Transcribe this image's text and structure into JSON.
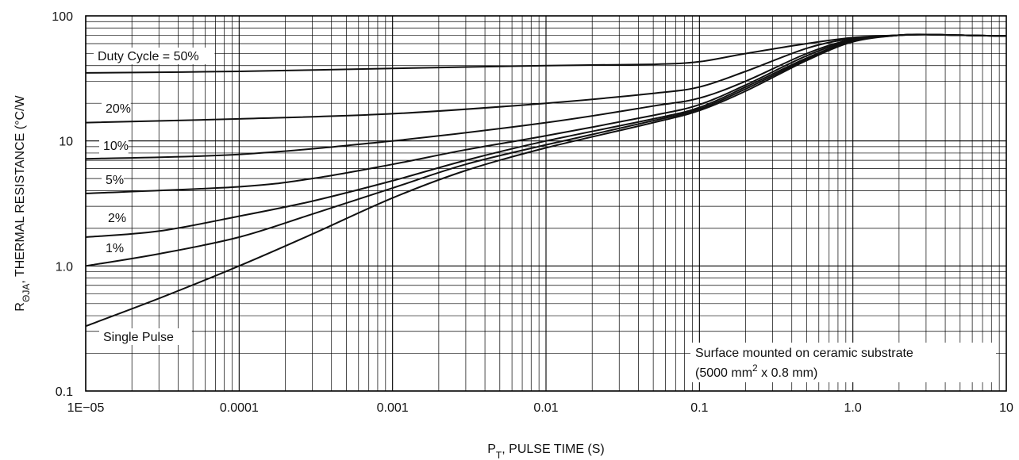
{
  "chart_data": {
    "type": "line",
    "title": "",
    "xlabel": {
      "main": "P",
      "sub": "T",
      "rest": ", PULSE TIME (S)"
    },
    "ylabel": {
      "main": "R",
      "sub": "ΘJA",
      "rest": ", THERMAL RESISTANCE (°C/W"
    },
    "x_scale": "log",
    "y_scale": "log",
    "xlim": [
      1e-05,
      10
    ],
    "ylim": [
      0.1,
      100
    ],
    "grid": true,
    "x_ticks": [
      {
        "value": 1e-05,
        "label": "1E−05"
      },
      {
        "value": 0.0001,
        "label": "0.0001"
      },
      {
        "value": 0.001,
        "label": "0.001"
      },
      {
        "value": 0.01,
        "label": "0.01"
      },
      {
        "value": 0.1,
        "label": "0.1"
      },
      {
        "value": 1,
        "label": "1.0"
      },
      {
        "value": 10,
        "label": "10"
      }
    ],
    "y_ticks": [
      {
        "value": 0.1,
        "label": "0.1"
      },
      {
        "value": 1,
        "label": "1.0"
      },
      {
        "value": 10,
        "label": "10"
      },
      {
        "value": 100,
        "label": "100"
      }
    ],
    "series": [
      {
        "name": "Duty Cycle = 50%",
        "x": [
          1e-05,
          0.0001,
          0.001,
          0.01,
          0.05,
          0.1,
          0.2,
          0.5,
          1,
          2,
          3,
          5,
          10
        ],
        "y": [
          35,
          36,
          38,
          40,
          41,
          43,
          50,
          60,
          67,
          70,
          71,
          70,
          69
        ]
      },
      {
        "name": "20%",
        "x": [
          1e-05,
          0.0001,
          0.001,
          0.01,
          0.05,
          0.1,
          0.2,
          0.5,
          1,
          2,
          3,
          5,
          10
        ],
        "y": [
          14,
          15,
          16.5,
          20,
          24,
          27,
          36,
          55,
          66,
          70,
          71,
          70,
          69
        ]
      },
      {
        "name": "10%",
        "x": [
          1e-05,
          0.0001,
          0.001,
          0.01,
          0.05,
          0.1,
          0.2,
          0.5,
          1,
          2,
          3,
          5,
          10
        ],
        "y": [
          7.2,
          7.8,
          10,
          14,
          19,
          22,
          30,
          50,
          65,
          70,
          71,
          70,
          69
        ]
      },
      {
        "name": "5%",
        "x": [
          1e-05,
          0.0001,
          0.0003,
          0.001,
          0.003,
          0.01,
          0.05,
          0.1,
          0.2,
          0.5,
          1,
          2,
          3,
          5,
          10
        ],
        "y": [
          3.8,
          4.3,
          5,
          6.5,
          8.5,
          11,
          16,
          19.5,
          28,
          48,
          64,
          70,
          71,
          70,
          69
        ]
      },
      {
        "name": "2%",
        "x": [
          1e-05,
          3e-05,
          0.0001,
          0.0003,
          0.001,
          0.003,
          0.01,
          0.05,
          0.1,
          0.2,
          0.5,
          1,
          2,
          3,
          5,
          10
        ],
        "y": [
          1.7,
          1.9,
          2.5,
          3.3,
          4.8,
          7,
          10,
          15,
          18.5,
          27,
          46,
          63,
          70,
          71,
          70,
          69
        ]
      },
      {
        "name": "1%",
        "x": [
          1e-05,
          3e-05,
          0.0001,
          0.0003,
          0.001,
          0.003,
          0.01,
          0.05,
          0.1,
          0.2,
          0.5,
          1,
          2,
          3,
          5,
          10
        ],
        "y": [
          1.0,
          1.25,
          1.7,
          2.6,
          4.2,
          6.5,
          9.3,
          14.5,
          18,
          26,
          45,
          63,
          70,
          71,
          70,
          69
        ]
      },
      {
        "name": "Single Pulse",
        "x": [
          1e-05,
          3e-05,
          0.0001,
          0.0003,
          0.001,
          0.003,
          0.01,
          0.05,
          0.1,
          0.2,
          0.5,
          1,
          2,
          3,
          5,
          10
        ],
        "y": [
          0.33,
          0.55,
          1.0,
          1.8,
          3.5,
          5.8,
          8.8,
          14,
          17.5,
          25,
          44,
          62,
          70,
          71,
          70,
          69
        ]
      }
    ],
    "series_labels": [
      {
        "text": "Duty Cycle = 50%"
      },
      {
        "text": "20%"
      },
      {
        "text": "10%"
      },
      {
        "text": "5%"
      },
      {
        "text": "2%"
      },
      {
        "text": "1%"
      },
      {
        "text": "Single Pulse"
      }
    ],
    "annotation": {
      "line1": "Surface mounted on ceramic substrate",
      "line2_pre": "(5000 mm",
      "line2_sup": "2",
      "line2_post": " x 0.8 mm)"
    }
  }
}
